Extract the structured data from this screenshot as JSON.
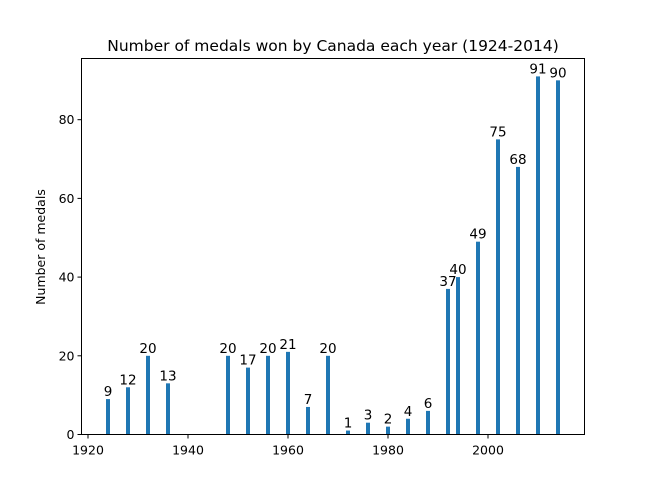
{
  "chart_data": {
    "type": "bar",
    "title": "Number of medals won by Canada each year (1924-2014)",
    "xlabel": "",
    "ylabel": "Number of medals",
    "x": [
      1924,
      1928,
      1932,
      1936,
      1948,
      1952,
      1956,
      1960,
      1964,
      1968,
      1972,
      1976,
      1980,
      1984,
      1988,
      1992,
      1994,
      1998,
      2002,
      2006,
      2010,
      2014
    ],
    "values": [
      9,
      12,
      20,
      13,
      20,
      17,
      20,
      21,
      7,
      20,
      1,
      3,
      2,
      4,
      6,
      37,
      40,
      49,
      75,
      68,
      91,
      90
    ],
    "xlim": [
      1918.7,
      2019.3
    ],
    "ylim": [
      0,
      95.55
    ],
    "xticks": [
      1920,
      1940,
      1960,
      1980,
      2000
    ],
    "yticks": [
      0,
      20,
      40,
      60,
      80
    ],
    "bar_color": "#1f77b4",
    "grid": false,
    "legend": "none"
  }
}
